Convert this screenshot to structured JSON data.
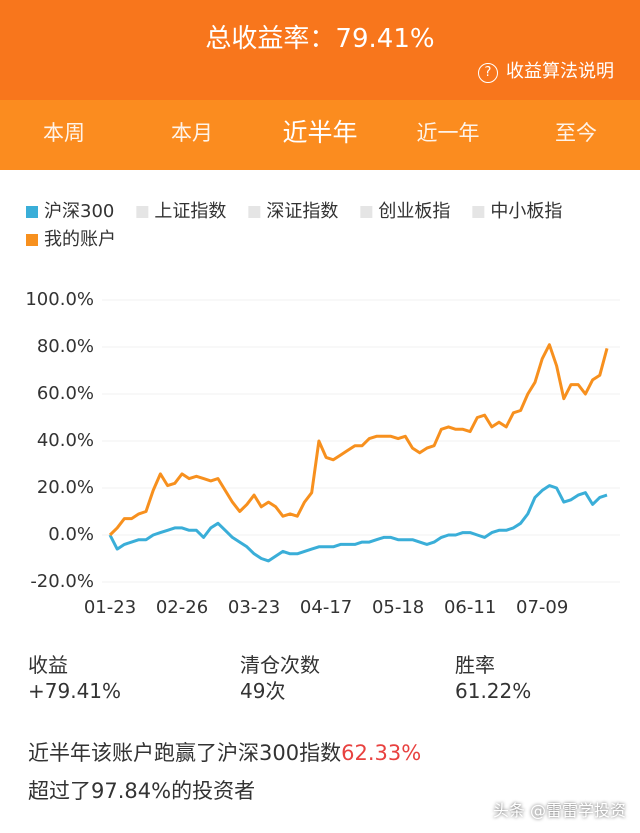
{
  "header": {
    "title": "总收益率：79.41%",
    "help": "收益算法说明"
  },
  "tabs": [
    "本周",
    "本月",
    "近半年",
    "近一年",
    "至今"
  ],
  "active_tab": 2,
  "chart_data": {
    "type": "line",
    "legend_inactive": [
      "上证指数",
      "深证指数",
      "创业板指",
      "中小板指"
    ],
    "categories": [
      "01-23",
      null,
      null,
      null,
      null,
      null,
      null,
      null,
      null,
      null,
      "02-26",
      null,
      null,
      null,
      null,
      null,
      null,
      null,
      null,
      null,
      "03-23",
      null,
      null,
      null,
      null,
      null,
      null,
      null,
      null,
      null,
      "04-17",
      null,
      null,
      null,
      null,
      null,
      null,
      null,
      null,
      null,
      "05-18",
      null,
      null,
      null,
      null,
      null,
      null,
      null,
      null,
      null,
      "06-11",
      null,
      null,
      null,
      null,
      null,
      null,
      null,
      null,
      null,
      "07-09",
      null,
      null,
      null,
      null,
      null,
      null,
      null,
      null,
      null
    ],
    "series": [
      {
        "name": "沪深300",
        "color": "#3aaed8",
        "values": [
          0,
          -6,
          -4,
          -3,
          -2,
          -2,
          0,
          1,
          2,
          3,
          3,
          2,
          2,
          -1,
          3,
          5,
          2,
          -1,
          -3,
          -5,
          -8,
          -10,
          -11,
          -9,
          -7,
          -8,
          -8,
          -7,
          -6,
          -5,
          -5,
          -5,
          -4,
          -4,
          -4,
          -3,
          -3,
          -2,
          -1,
          -1,
          -2,
          -2,
          -2,
          -3,
          -4,
          -3,
          -1,
          0,
          0,
          1,
          1,
          0,
          -1,
          1,
          2,
          2,
          3,
          5,
          9,
          16,
          19,
          21,
          20,
          14,
          15,
          17,
          18,
          13,
          16,
          17
        ]
      },
      {
        "name": "我的账户",
        "color": "#f7901e",
        "values": [
          0,
          3,
          7,
          7,
          9,
          10,
          19,
          26,
          21,
          22,
          26,
          24,
          25,
          24,
          23,
          24,
          19,
          14,
          10,
          13,
          17,
          12,
          14,
          12,
          8,
          9,
          8,
          14,
          18,
          40,
          33,
          32,
          34,
          36,
          38,
          38,
          41,
          42,
          42,
          42,
          41,
          42,
          37,
          35,
          37,
          38,
          45,
          46,
          45,
          45,
          44,
          50,
          51,
          46,
          48,
          46,
          52,
          53,
          60,
          65,
          75,
          81,
          72,
          58,
          64,
          64,
          60,
          66,
          68,
          79.41
        ]
      }
    ],
    "ylim": [
      -20,
      100
    ],
    "yticks": [
      {
        "value": -20,
        "label": "-20.0%"
      },
      {
        "value": 0,
        "label": "0.0%"
      },
      {
        "value": 20,
        "label": "20.0%"
      },
      {
        "value": 40,
        "label": "40.0%"
      },
      {
        "value": 60,
        "label": "60.0%"
      },
      {
        "value": 80,
        "label": "80.0%"
      },
      {
        "value": 100,
        "label": "100.0%"
      }
    ],
    "grid": true
  },
  "stats": [
    {
      "label": "收益",
      "value": "+79.41%"
    },
    {
      "label": "清仓次数",
      "value": "49次"
    },
    {
      "label": "胜率",
      "value": "61.22%"
    }
  ],
  "summary": {
    "line1": "近半年该账户跑赢了沪深300指数",
    "highlight": "62.33%",
    "line2": "超过了97.84%的投资者"
  },
  "watermark": "头条 @雷雷学投资"
}
